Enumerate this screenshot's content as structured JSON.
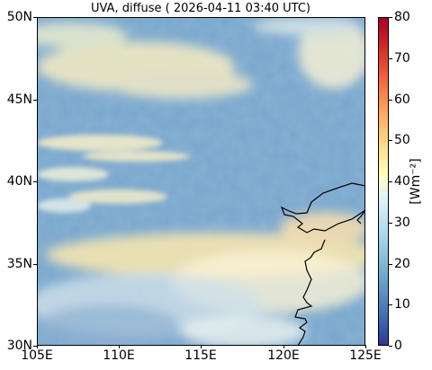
{
  "title": "UVA, diffuse ( 2026-04-11 03:40 UTC)",
  "map": {
    "lon_range": [
      105,
      125
    ],
    "lat_range": [
      30,
      50
    ],
    "lat_ticks": [
      "50N",
      "45N",
      "40N",
      "35N",
      "30N"
    ],
    "lon_ticks": [
      "105E",
      "110E",
      "115E",
      "120E",
      "125E"
    ],
    "base_color": "#6f9fc8"
  },
  "colorbar": {
    "ticks": [
      "80",
      "70",
      "60",
      "50",
      "40",
      "30",
      "20",
      "10",
      "0"
    ],
    "range": [
      0,
      80
    ],
    "unit_label": "[Wm⁻²]",
    "colormap": "RdYlBu_r"
  }
}
